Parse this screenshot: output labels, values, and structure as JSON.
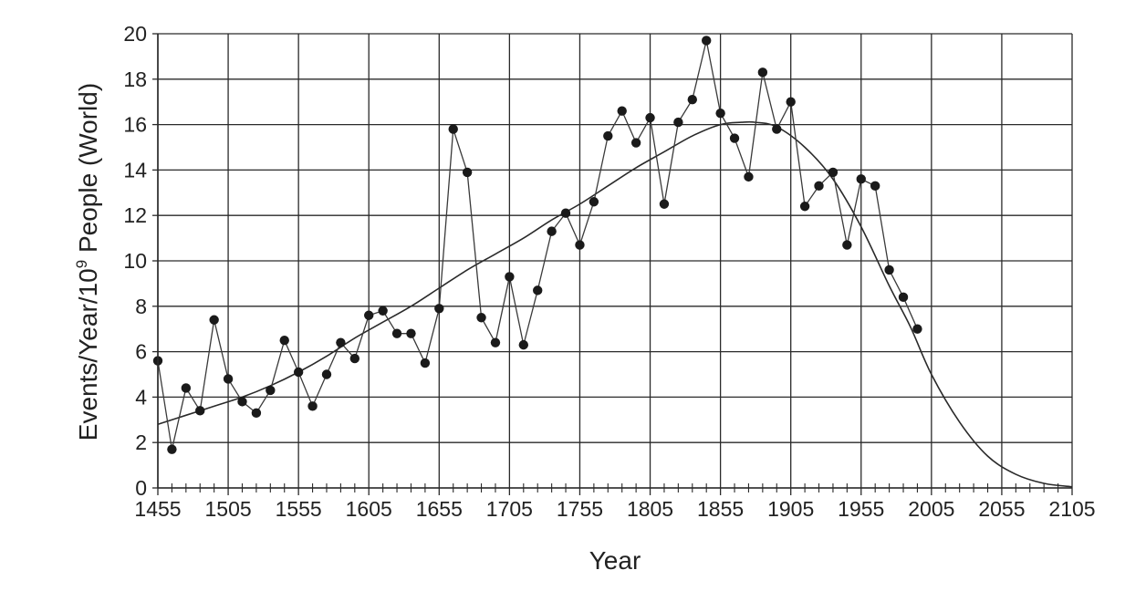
{
  "chart_data": {
    "type": "line",
    "title": "",
    "xlabel": "Year",
    "ylabel_main": "Events/Year/10",
    "ylabel_sup": "9",
    "ylabel_tail": " People (World)",
    "xlim": [
      1455,
      2105
    ],
    "ylim": [
      0,
      20
    ],
    "x_ticks": [
      1455,
      1505,
      1555,
      1605,
      1655,
      1705,
      1755,
      1805,
      1855,
      1905,
      1955,
      2005,
      2055,
      2105
    ],
    "x_tick_labels": [
      "1455",
      "1505",
      "1555",
      "1605",
      "1655",
      "1705",
      "1755",
      "1805",
      "1855",
      "1905",
      "1955",
      "2005",
      "2055",
      "2105"
    ],
    "x_minor_step": 10,
    "y_ticks": [
      0,
      2,
      4,
      6,
      8,
      10,
      12,
      14,
      16,
      18,
      20
    ],
    "y_tick_labels": [
      "0",
      "2",
      "4",
      "6",
      "8",
      "10",
      "12",
      "14",
      "16",
      "18",
      "20"
    ],
    "grid": true,
    "colors": {
      "line": "#3a3a3a",
      "marker": "#1a1a1a",
      "grid": "#2a2a2a",
      "curve": "#2a2a2a"
    },
    "series": [
      {
        "style": "line-markers",
        "x": [
          1455,
          1465,
          1475,
          1485,
          1495,
          1505,
          1515,
          1525,
          1535,
          1545,
          1555,
          1565,
          1575,
          1585,
          1595,
          1605,
          1615,
          1625,
          1635,
          1645,
          1655,
          1665,
          1675,
          1685,
          1695,
          1705,
          1715,
          1725,
          1735,
          1745,
          1755,
          1765,
          1775,
          1785,
          1795,
          1805,
          1815,
          1825,
          1835,
          1845,
          1855,
          1865,
          1875,
          1885,
          1895,
          1905,
          1915,
          1925,
          1935,
          1945,
          1955,
          1965,
          1975,
          1985,
          1995
        ],
        "y": [
          5.6,
          1.7,
          4.4,
          3.4,
          7.4,
          4.8,
          3.8,
          3.3,
          4.3,
          6.5,
          5.1,
          3.6,
          5.0,
          6.4,
          5.7,
          7.6,
          7.8,
          6.8,
          6.8,
          5.5,
          7.9,
          15.8,
          13.9,
          7.5,
          6.4,
          9.3,
          6.3,
          8.7,
          11.3,
          12.1,
          10.7,
          12.6,
          15.5,
          16.6,
          15.2,
          16.3,
          12.5,
          16.1,
          17.1,
          19.7,
          16.5,
          15.4,
          13.7,
          18.3,
          15.8,
          17.0,
          12.4,
          13.3,
          13.9,
          10.7,
          13.6,
          13.3,
          9.6,
          8.4,
          7.0
        ]
      },
      {
        "style": "smooth-curve",
        "x": [
          1455,
          1475,
          1495,
          1515,
          1535,
          1555,
          1575,
          1595,
          1615,
          1635,
          1655,
          1675,
          1695,
          1715,
          1735,
          1755,
          1775,
          1795,
          1815,
          1835,
          1855,
          1870,
          1880,
          1895,
          1915,
          1935,
          1955,
          1975,
          1990,
          2005,
          2025,
          2045,
          2065,
          2085,
          2105
        ],
        "y": [
          2.8,
          3.2,
          3.6,
          4.0,
          4.5,
          5.1,
          5.8,
          6.6,
          7.3,
          8.0,
          8.8,
          9.6,
          10.3,
          11.0,
          11.8,
          12.5,
          13.3,
          14.1,
          14.8,
          15.5,
          16.0,
          16.1,
          16.1,
          15.9,
          15.0,
          13.6,
          11.5,
          8.9,
          7.1,
          5.0,
          2.9,
          1.4,
          0.6,
          0.2,
          0.05
        ]
      }
    ]
  }
}
